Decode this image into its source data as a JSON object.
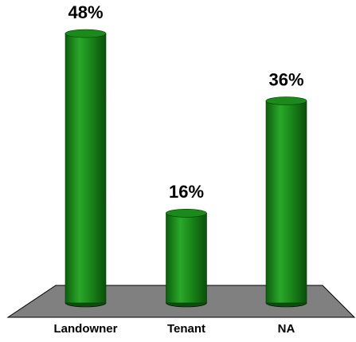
{
  "chart_data": {
    "type": "bar",
    "categories": [
      "Landowner",
      "Tenant",
      "NA"
    ],
    "values": [
      48,
      16,
      36
    ],
    "value_labels": [
      "48%",
      "16%",
      "36%"
    ],
    "color": "#1a8a1a",
    "floor_color": "#808080"
  }
}
